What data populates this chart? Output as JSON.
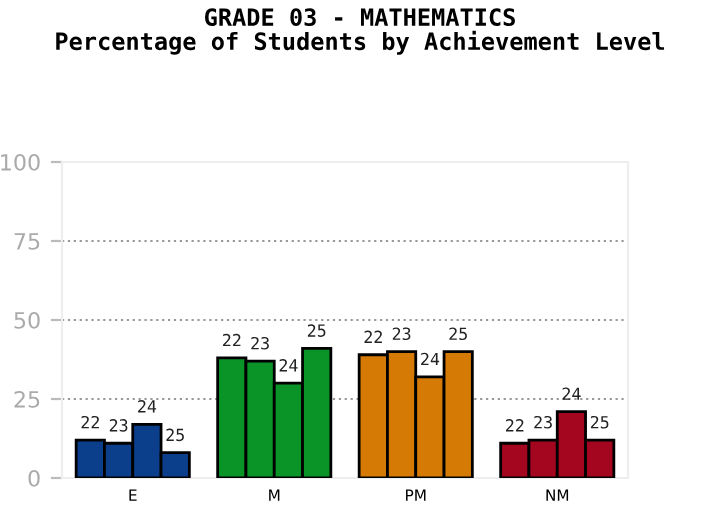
{
  "chart_data": {
    "type": "bar",
    "title": "GRADE 03 - MATHEMATICS\nPercentage of Students by Achievement Level",
    "categories": [
      "E",
      "M",
      "PM",
      "NM"
    ],
    "series": [
      {
        "name": "22",
        "colors": [
          "#0b3f8c",
          "#0a9428",
          "#d67a06",
          "#a3061e"
        ],
        "values": [
          12,
          38,
          39,
          11
        ]
      },
      {
        "name": "23",
        "colors": [
          "#0b3f8c",
          "#0a9428",
          "#d67a06",
          "#a3061e"
        ],
        "values": [
          11,
          37,
          40,
          12
        ]
      },
      {
        "name": "24",
        "colors": [
          "#0b3f8c",
          "#0a9428",
          "#d67a06",
          "#a3061e"
        ],
        "values": [
          17,
          30,
          32,
          21
        ]
      },
      {
        "name": "25",
        "colors": [
          "#0b3f8c",
          "#0a9428",
          "#d67a06",
          "#a3061e"
        ],
        "values": [
          8,
          41,
          40,
          12
        ]
      }
    ],
    "ylim": [
      0,
      100
    ],
    "yticks": [
      0,
      25,
      50,
      75,
      100
    ],
    "grid": "y",
    "legend": false
  }
}
